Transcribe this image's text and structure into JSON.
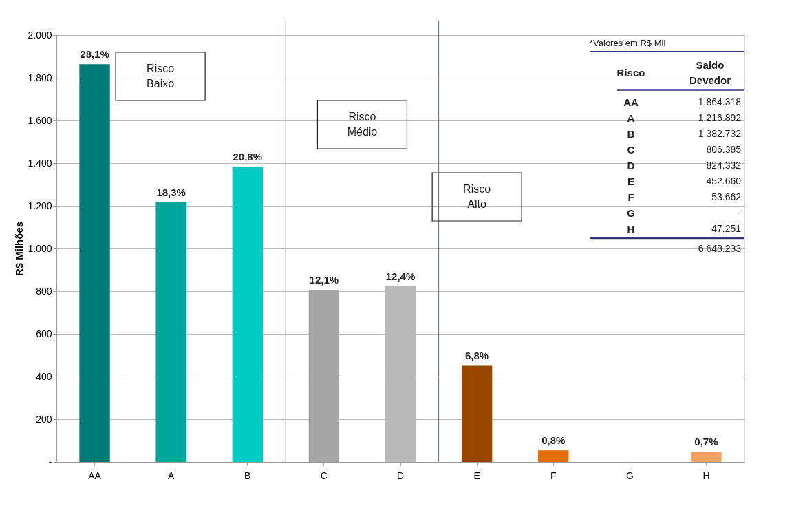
{
  "chart_data": {
    "type": "bar",
    "ylabel": "R$ Milhões",
    "categories": [
      "AA",
      "A",
      "B",
      "C",
      "D",
      "E",
      "F",
      "G",
      "H"
    ],
    "values": [
      1864,
      1217,
      1383,
      806,
      824,
      453,
      54,
      0,
      47
    ],
    "colors": [
      "#007b78",
      "#00a59c",
      "#00cbc3",
      "#a6a6a6",
      "#b9b9b9",
      "#9a4800",
      "#e46c0a",
      "#f5a25e",
      "#f5a25e"
    ],
    "ylim": [
      0,
      2000
    ],
    "yticks": [
      {
        "value": 0,
        "label": "-"
      },
      200,
      400,
      600,
      800,
      {
        "value": 1000,
        "label": "1.000"
      },
      {
        "value": 1200,
        "label": "1.200"
      },
      {
        "value": 1400,
        "label": "1.400"
      },
      {
        "value": 1600,
        "label": "1.600"
      },
      {
        "value": 1800,
        "label": "1.800"
      },
      {
        "value": 2000,
        "label": "2.000"
      }
    ],
    "grid": "y",
    "annotations": [
      {
        "text": "28,1%",
        "x": "AA",
        "y": 1864
      },
      {
        "text": "18,3%",
        "x": "A",
        "y": 1217
      },
      {
        "text": "20,8%",
        "x": "B",
        "y": 1383
      },
      {
        "text": "12,1%",
        "x": "C",
        "y": 806
      },
      {
        "text": "12,4%",
        "x": "D",
        "y": 824
      },
      {
        "text": "6,8%",
        "x": "E",
        "y": 453
      },
      {
        "text": "0,8%",
        "x": "F",
        "y": 54
      },
      {
        "text": "0,7%",
        "x": "H",
        "y": 47
      },
      "Risco\nBaixo",
      "Risco\nMédio",
      "Risco\nAlto",
      "*Valores em R$ Mil",
      "Risco",
      "Saldo\nDevedor",
      "AA\nA\nB\nC\nD\nE\nF\nG\nH",
      "1.864.318\n1.216.892\n1.382.732\n806.385\n824.332\n452.660\n53.662\n-\n47.251",
      "6.648.233"
    ]
  }
}
